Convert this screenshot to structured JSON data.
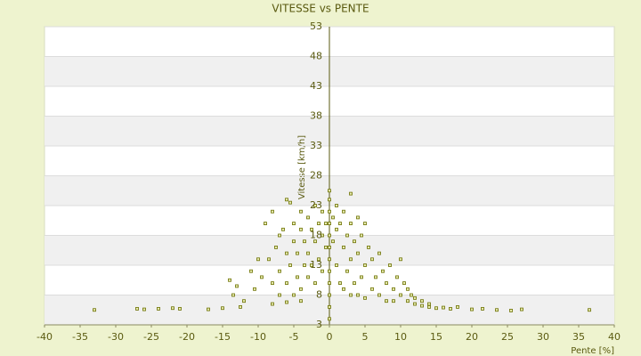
{
  "chart_data": {
    "type": "scatter",
    "title": "VITESSE vs PENTE",
    "x_label": "Pente [%]",
    "y_label": "Vitesse [km/h]",
    "color": "#6b7000",
    "x": [
      -33,
      -27,
      -26,
      -24,
      -22,
      -21,
      -17,
      -15,
      -12.5,
      -8,
      -6,
      -4,
      12,
      13,
      14,
      15,
      16,
      17,
      18,
      20,
      21.5,
      23.5,
      25.5,
      27,
      36.5,
      -14,
      -13,
      -13.5,
      -11,
      -10,
      -9,
      -8,
      -7,
      -6,
      -5.5,
      -10.5,
      -9.5,
      -12,
      -8.5,
      -8,
      -7.5,
      -7,
      -7,
      -6.5,
      -6,
      -6,
      -5.5,
      -5,
      -5,
      -5,
      -4.5,
      -4.5,
      -4,
      -4,
      -4,
      -3.5,
      -3.5,
      -3,
      -3,
      -3,
      -2.5,
      -2.5,
      -2,
      -2,
      -2,
      -1.5,
      -1.5,
      -1,
      -1,
      -1,
      -0.5,
      -0.5,
      0,
      0,
      0,
      0,
      0,
      0,
      0,
      0,
      0,
      0,
      0,
      0,
      0.5,
      0.5,
      1,
      1,
      1,
      1.5,
      1.5,
      2,
      2,
      2,
      2.5,
      2.5,
      3,
      3,
      3,
      3,
      3.5,
      3.5,
      4,
      4,
      4,
      4.5,
      4.5,
      5,
      5,
      5,
      5.5,
      6,
      6,
      6.5,
      7,
      7,
      7.5,
      8,
      8,
      8.5,
      9,
      9,
      9.5,
      10,
      10,
      10.5,
      11,
      11,
      11.5,
      12,
      13,
      14
    ],
    "values": [
      5.5,
      5.7,
      5.6,
      5.7,
      5.8,
      5.7,
      5.6,
      5.8,
      6,
      6.5,
      6.8,
      7,
      6.5,
      6.2,
      6,
      5.8,
      5.9,
      5.7,
      6,
      5.6,
      5.7,
      5.5,
      5.4,
      5.6,
      5.5,
      10.5,
      9.5,
      8,
      12,
      14,
      20,
      22,
      18,
      24,
      23.5,
      9,
      11,
      7,
      14,
      10,
      16,
      12,
      8,
      19,
      15,
      10,
      13,
      20,
      17,
      8,
      11,
      15,
      19,
      22,
      9,
      13,
      17,
      21,
      11,
      15,
      19,
      13,
      23,
      17,
      10,
      20,
      14,
      22,
      18,
      12,
      20,
      16,
      4,
      6,
      8,
      10,
      12,
      14,
      16,
      18,
      20,
      22,
      24,
      25.5,
      21,
      17,
      23,
      19,
      13,
      20,
      10,
      22,
      16,
      9,
      18,
      12,
      25,
      20,
      14,
      8,
      17,
      10,
      21,
      15,
      8,
      18,
      11,
      20,
      13,
      7.5,
      16,
      14,
      9,
      11,
      15,
      8,
      12,
      10,
      7,
      13,
      9,
      7,
      11,
      14,
      8,
      10,
      9,
      7,
      8,
      7.5,
      7,
      6.5
    ],
    "xlim": [
      -40,
      40
    ],
    "xticks": [
      -40,
      -35,
      -30,
      -25,
      -20,
      -15,
      -10,
      -5,
      0,
      5,
      10,
      15,
      20,
      25,
      30,
      35,
      40
    ],
    "ylim": [
      3,
      53
    ],
    "yticks": [
      3,
      8,
      13,
      18,
      23,
      28,
      33,
      38,
      43,
      48,
      53
    ],
    "grid": true
  }
}
